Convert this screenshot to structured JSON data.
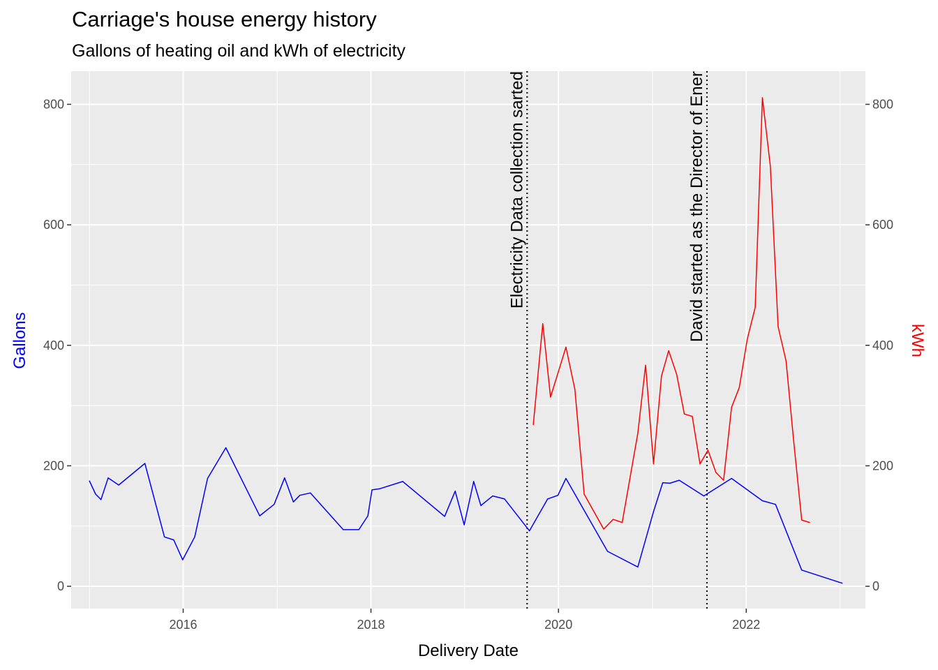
{
  "chart_data": {
    "type": "line",
    "title": "Carriage's house energy history",
    "subtitle": "Gallons of heating oil and kWh of electricity",
    "xlabel": "Delivery Date",
    "ylabel_left": "Gallons",
    "ylabel_right": "kWh",
    "x_tick_labels": [
      "2016",
      "2018",
      "2020",
      "2022"
    ],
    "y_ticks": [
      0,
      200,
      400,
      600,
      800
    ],
    "xlim": [
      "2014-10-22",
      "2023-04-10"
    ],
    "ylim": [
      -37,
      855
    ],
    "grid": true,
    "colors": {
      "gallons": "#0000ff",
      "kwh": "#ff0000",
      "panel": "#ebebeb",
      "grid": "#ffffff"
    },
    "series": [
      {
        "name": "Gallons",
        "axis": "left",
        "color": "#0000ff",
        "points": [
          [
            "2015-01-01",
            175
          ],
          [
            "2015-01-25",
            153
          ],
          [
            "2015-02-15",
            144
          ],
          [
            "2015-03-15",
            180
          ],
          [
            "2015-04-25",
            168
          ],
          [
            "2015-08-05",
            204
          ],
          [
            "2015-10-20",
            82
          ],
          [
            "2015-11-25",
            77
          ],
          [
            "2015-12-30",
            44
          ],
          [
            "2016-02-15",
            82
          ],
          [
            "2016-04-05",
            179
          ],
          [
            "2016-06-15",
            230
          ],
          [
            "2016-10-25",
            117
          ],
          [
            "2016-12-20",
            136
          ],
          [
            "2017-01-30",
            180
          ],
          [
            "2017-03-05",
            140
          ],
          [
            "2017-03-30",
            151
          ],
          [
            "2017-05-10",
            155
          ],
          [
            "2017-09-15",
            94
          ],
          [
            "2017-11-15",
            94
          ],
          [
            "2017-12-20",
            117
          ],
          [
            "2018-01-05",
            160
          ],
          [
            "2018-02-05",
            162
          ],
          [
            "2018-05-05",
            174
          ],
          [
            "2018-10-15",
            116
          ],
          [
            "2018-11-25",
            158
          ],
          [
            "2018-12-30",
            102
          ],
          [
            "2019-02-05",
            174
          ],
          [
            "2019-03-05",
            134
          ],
          [
            "2019-04-20",
            150
          ],
          [
            "2019-06-05",
            145
          ],
          [
            "2019-09-10",
            92
          ],
          [
            "2019-11-20",
            145
          ],
          [
            "2019-12-30",
            151
          ],
          [
            "2020-01-30",
            179
          ],
          [
            "2020-07-10",
            58
          ],
          [
            "2020-11-05",
            32
          ],
          [
            "2021-01-05",
            124
          ],
          [
            "2021-02-10",
            172
          ],
          [
            "2021-03-10",
            171
          ],
          [
            "2021-04-15",
            176
          ],
          [
            "2021-07-20",
            150
          ],
          [
            "2021-11-05",
            179
          ],
          [
            "2022-03-05",
            142
          ],
          [
            "2022-04-25",
            136
          ],
          [
            "2022-08-05",
            27
          ],
          [
            "2023-01-10",
            5
          ]
        ]
      },
      {
        "name": "kWh",
        "axis": "right",
        "color": "#ff0000",
        "points": [
          [
            "2019-09-25",
            268
          ],
          [
            "2019-11-01",
            436
          ],
          [
            "2019-12-01",
            314
          ],
          [
            "2020-01-30",
            397
          ],
          [
            "2020-03-05",
            327
          ],
          [
            "2020-04-10",
            153
          ],
          [
            "2020-06-25",
            95
          ],
          [
            "2020-08-01",
            111
          ],
          [
            "2020-09-05",
            106
          ],
          [
            "2020-11-05",
            254
          ],
          [
            "2020-12-05",
            367
          ],
          [
            "2021-01-05",
            203
          ],
          [
            "2021-02-05",
            349
          ],
          [
            "2021-03-05",
            391
          ],
          [
            "2021-04-05",
            352
          ],
          [
            "2021-05-05",
            286
          ],
          [
            "2021-06-05",
            282
          ],
          [
            "2021-07-05",
            203
          ],
          [
            "2021-08-05",
            226
          ],
          [
            "2021-09-05",
            189
          ],
          [
            "2021-10-05",
            176
          ],
          [
            "2021-11-05",
            297
          ],
          [
            "2021-12-05",
            330
          ],
          [
            "2022-01-05",
            410
          ],
          [
            "2022-02-05",
            463
          ],
          [
            "2022-03-05",
            811
          ],
          [
            "2022-04-05",
            697
          ],
          [
            "2022-05-05",
            431
          ],
          [
            "2022-06-05",
            374
          ],
          [
            "2022-07-05",
            240
          ],
          [
            "2022-08-05",
            110
          ],
          [
            "2022-09-05",
            106
          ]
        ]
      }
    ],
    "vlines": [
      {
        "x": "2019-09-01",
        "label": "Electricity Data collection sarted",
        "style": "dotted"
      },
      {
        "x": "2021-08-01",
        "label": "David started as the Director of Ener",
        "style": "dotted"
      }
    ]
  }
}
